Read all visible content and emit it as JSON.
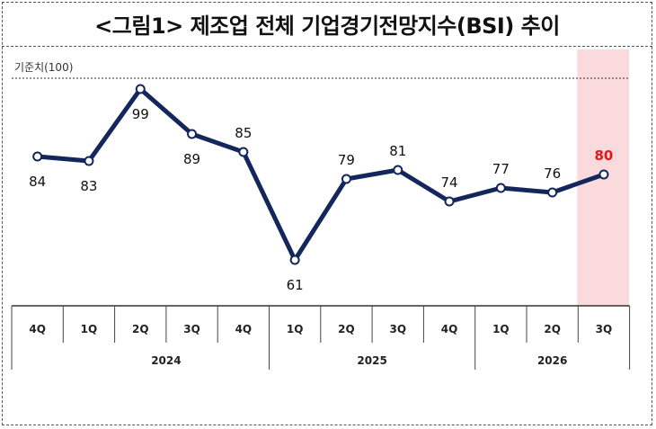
{
  "chart_data": {
    "type": "line",
    "title": "<그림1> 제조업 전체 기업경기전망지수(BSI) 추이",
    "reference_label": "기준치(100)",
    "reference_value": 100,
    "ylim": [
      50,
      104
    ],
    "grid": false,
    "categories": [
      "4Q",
      "1Q",
      "2Q",
      "3Q",
      "4Q",
      "1Q",
      "2Q",
      "3Q",
      "4Q",
      "1Q",
      "2Q",
      "3Q"
    ],
    "years": [
      {
        "label": "2024",
        "start": 1,
        "end": 4
      },
      {
        "label": "2025",
        "start": 5,
        "end": 8
      },
      {
        "label": "2026",
        "start": 9,
        "end": 11
      }
    ],
    "series": [
      {
        "values": [
          84,
          83,
          99,
          89,
          85,
          61,
          79,
          81,
          74,
          77,
          76,
          80
        ]
      }
    ],
    "label_positions": [
      "below",
      "below",
      "below",
      "below",
      "above",
      "below",
      "above",
      "above",
      "above",
      "above",
      "above",
      "above"
    ],
    "highlight_index": 11,
    "colors": {
      "line": "#13275c",
      "marker_fill": "#ffffff",
      "highlight_band": "#fadadd",
      "highlight_text": "#e8141c",
      "reference_line": "#555555"
    }
  }
}
